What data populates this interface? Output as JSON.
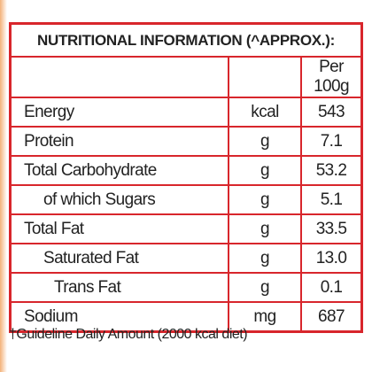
{
  "table": {
    "title": "NUTRITIONAL INFORMATION (^APPROX.):",
    "column_header": "Per 100g",
    "rows": [
      [
        "Energy",
        "kcal",
        "543"
      ],
      [
        "Protein",
        "g",
        "7.1"
      ],
      [
        "Total Carbohydrate",
        "g",
        "53.2"
      ],
      [
        "of which Sugars",
        "g",
        "5.1"
      ],
      [
        "Total Fat",
        "g",
        "33.5"
      ],
      [
        "Saturated Fat",
        "g",
        "13.0"
      ],
      [
        "Trans Fat",
        "g",
        "0.1"
      ],
      [
        "Sodium",
        "mg",
        "687"
      ]
    ]
  },
  "footnote": "†Guideline Daily Amount (2000 kcal diet)"
}
